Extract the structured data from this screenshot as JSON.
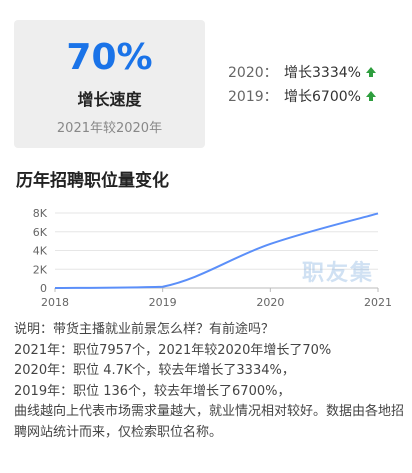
{
  "summary": {
    "value": "70%",
    "label": "增长速度",
    "sub": "2021年较2020年"
  },
  "growth": [
    {
      "year": "2020：",
      "text": "增长3334%"
    },
    {
      "year": "2019：",
      "text": "增长6700%"
    }
  ],
  "colors": {
    "accent": "#1a73e8",
    "up_arrow": "#2e9e3e",
    "line": "#5b8ff9"
  },
  "section_title": "历年招聘职位量变化",
  "watermark": "职友集",
  "chart_data": {
    "type": "line",
    "x": [
      2018,
      2019,
      2020,
      2021
    ],
    "x_ticks": [
      "2018",
      "2019",
      "2020",
      "2021"
    ],
    "y_ticks": [
      "0",
      "2K",
      "4K",
      "6K",
      "8K"
    ],
    "ylim": [
      0,
      8000
    ],
    "series": [
      {
        "values": [
          0,
          136,
          4700,
          7957
        ]
      }
    ],
    "grid": true
  },
  "notes": [
    "说明：带货主播就业前景怎么样？有前途吗？",
    "2021年：职位7957个，2021年较2020年增长了70%",
    "2020年：职位 4.7K个，较去年增长了3334%，",
    "2019年：职位 136个，较去年增长了6700%，",
    "曲线越向上代表市场需求量越大，就业情况相对较好。数据由各地招聘网站统计而来，仅检索职位名称。"
  ]
}
